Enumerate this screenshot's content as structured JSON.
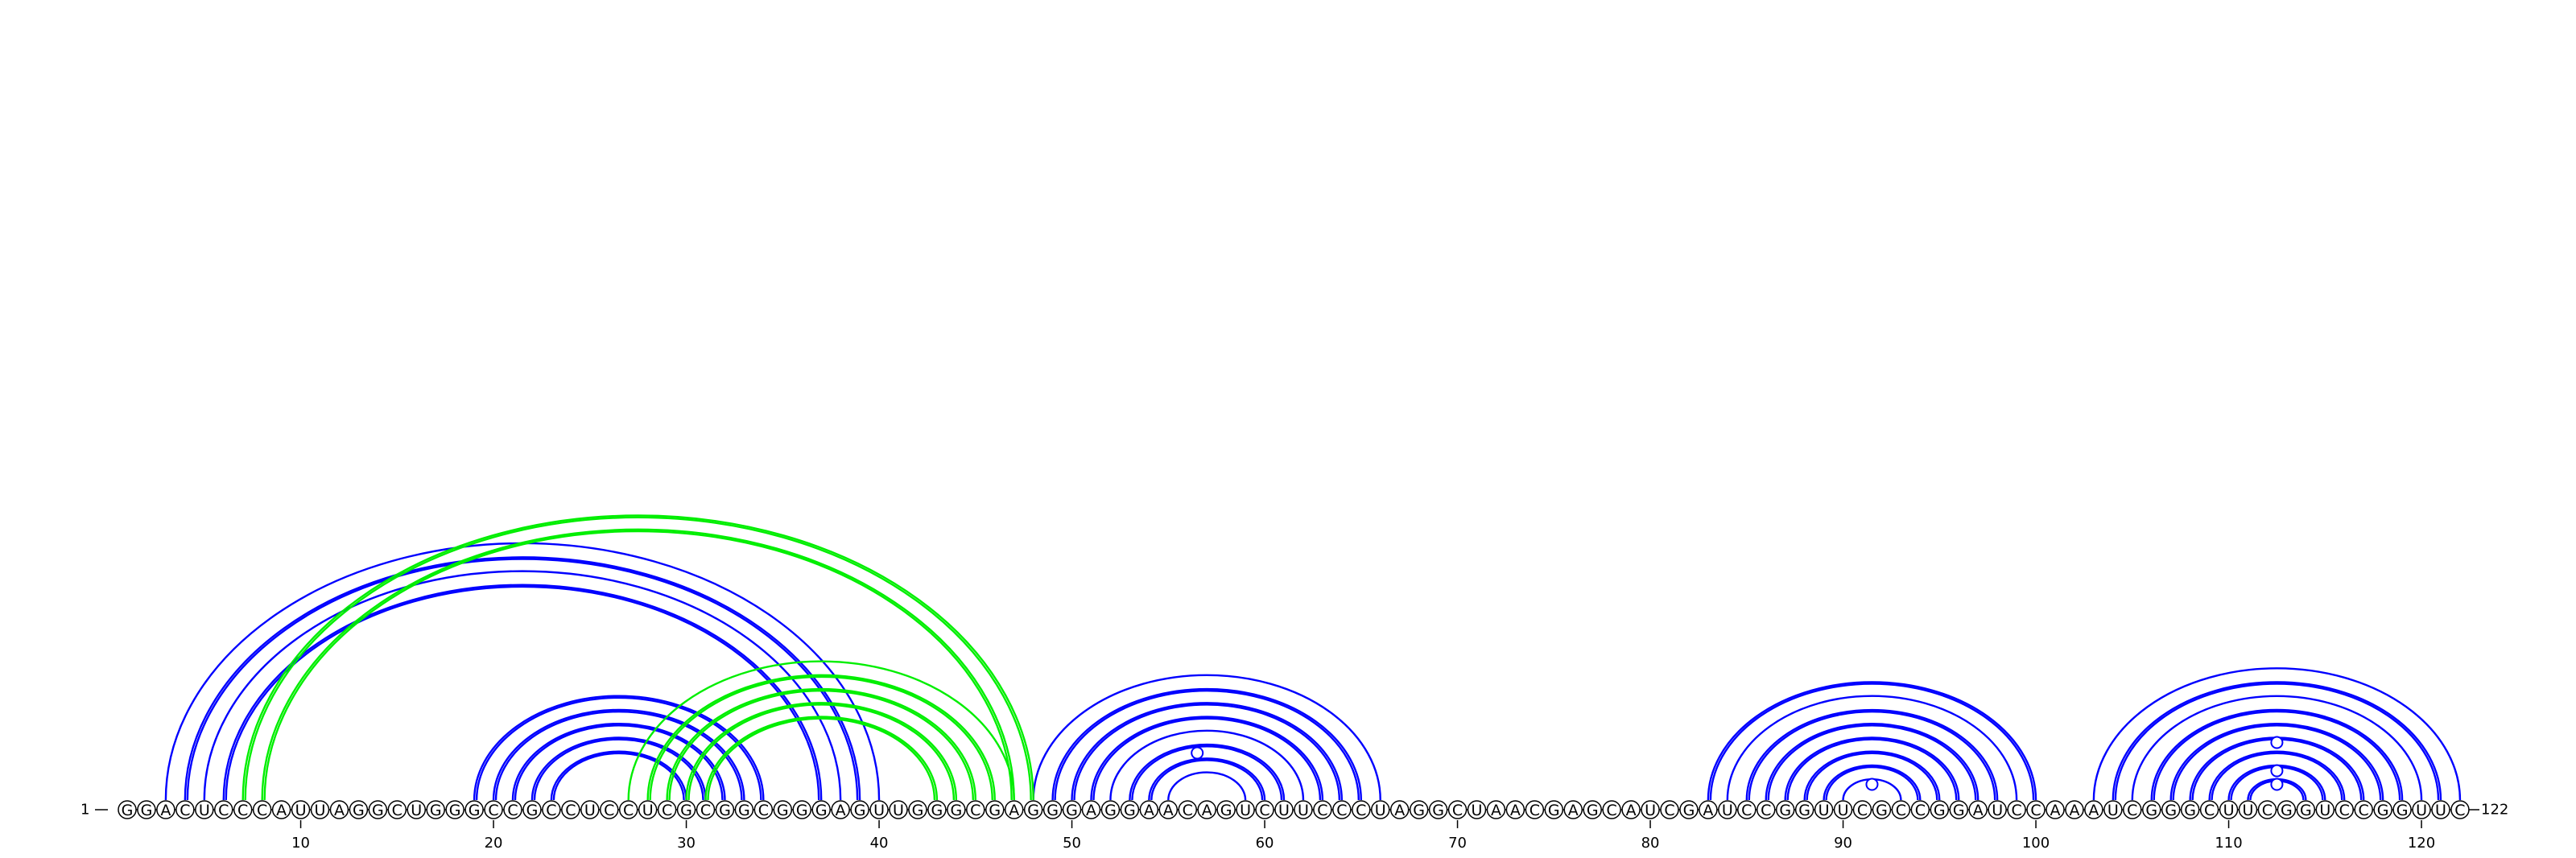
{
  "diagram": {
    "sequence": "GGACUCCCAUUAGGCUGGGCCGCCUCCUCGCGGCGGGAGUUGGGCGAGGGAGGAACAGUCUUCCCUAGGCUAACGAGCAUCGAUCCGGUUCGCCGGAUCCAAAUCGGGCUUCGGUCCGGUUC",
    "start_label": "1",
    "end_label": "122",
    "ticks": [
      10,
      20,
      30,
      40,
      50,
      60,
      70,
      80,
      90,
      100,
      110,
      120
    ],
    "colors": {
      "primary": "#0000ff",
      "secondary": "#00ee00",
      "nucleotide_outline": "#000000"
    },
    "arcs": [
      {
        "i": 3,
        "j": 40,
        "color": "#0000ff"
      },
      {
        "i": 4,
        "j": 39,
        "color": "#0000ff"
      },
      {
        "i": 4,
        "j": 39,
        "color": "#0000ff",
        "offset": 1
      },
      {
        "i": 5,
        "j": 38,
        "color": "#0000ff"
      },
      {
        "i": 6,
        "j": 37,
        "color": "#0000ff"
      },
      {
        "i": 6,
        "j": 37,
        "color": "#0000ff",
        "offset": 1
      },
      {
        "i": 19,
        "j": 34,
        "color": "#0000ff"
      },
      {
        "i": 19,
        "j": 34,
        "color": "#0000ff",
        "offset": 1
      },
      {
        "i": 20,
        "j": 33,
        "color": "#0000ff"
      },
      {
        "i": 20,
        "j": 33,
        "color": "#0000ff",
        "offset": 1
      },
      {
        "i": 21,
        "j": 32,
        "color": "#0000ff"
      },
      {
        "i": 21,
        "j": 32,
        "color": "#0000ff",
        "offset": 1
      },
      {
        "i": 22,
        "j": 31,
        "color": "#0000ff"
      },
      {
        "i": 22,
        "j": 31,
        "color": "#0000ff",
        "offset": 1
      },
      {
        "i": 23,
        "j": 30,
        "color": "#0000ff"
      },
      {
        "i": 23,
        "j": 30,
        "color": "#0000ff",
        "offset": 1
      },
      {
        "i": 48,
        "j": 66,
        "color": "#0000ff"
      },
      {
        "i": 49,
        "j": 65,
        "color": "#0000ff"
      },
      {
        "i": 49,
        "j": 65,
        "color": "#0000ff",
        "offset": 1
      },
      {
        "i": 50,
        "j": 64,
        "color": "#0000ff"
      },
      {
        "i": 50,
        "j": 64,
        "color": "#0000ff",
        "offset": 1
      },
      {
        "i": 51,
        "j": 63,
        "color": "#0000ff"
      },
      {
        "i": 51,
        "j": 63,
        "color": "#0000ff",
        "offset": 1
      },
      {
        "i": 52,
        "j": 62,
        "color": "#0000ff"
      },
      {
        "i": 53,
        "j": 61,
        "color": "#0000ff"
      },
      {
        "i": 53,
        "j": 61,
        "color": "#0000ff",
        "offset": 1
      },
      {
        "i": 54,
        "j": 60,
        "color": "#0000ff"
      },
      {
        "i": 54,
        "j": 60,
        "color": "#0000ff",
        "offset": 1
      },
      {
        "i": 55,
        "j": 59,
        "color": "#0000ff"
      },
      {
        "i": 83,
        "j": 100,
        "color": "#0000ff"
      },
      {
        "i": 83,
        "j": 100,
        "color": "#0000ff",
        "offset": 1
      },
      {
        "i": 84,
        "j": 99,
        "color": "#0000ff"
      },
      {
        "i": 85,
        "j": 98,
        "color": "#0000ff"
      },
      {
        "i": 85,
        "j": 98,
        "color": "#0000ff",
        "offset": 1
      },
      {
        "i": 86,
        "j": 97,
        "color": "#0000ff"
      },
      {
        "i": 86,
        "j": 97,
        "color": "#0000ff",
        "offset": 1
      },
      {
        "i": 87,
        "j": 96,
        "color": "#0000ff"
      },
      {
        "i": 87,
        "j": 96,
        "color": "#0000ff",
        "offset": 1
      },
      {
        "i": 88,
        "j": 95,
        "color": "#0000ff"
      },
      {
        "i": 88,
        "j": 95,
        "color": "#0000ff",
        "offset": 1
      },
      {
        "i": 89,
        "j": 94,
        "color": "#0000ff"
      },
      {
        "i": 89,
        "j": 94,
        "color": "#0000ff",
        "offset": 1
      },
      {
        "i": 90,
        "j": 93,
        "color": "#0000ff"
      },
      {
        "i": 103,
        "j": 122,
        "color": "#0000ff"
      },
      {
        "i": 104,
        "j": 121,
        "color": "#0000ff"
      },
      {
        "i": 104,
        "j": 121,
        "color": "#0000ff",
        "offset": 1
      },
      {
        "i": 105,
        "j": 120,
        "color": "#0000ff"
      },
      {
        "i": 106,
        "j": 119,
        "color": "#0000ff"
      },
      {
        "i": 106,
        "j": 119,
        "color": "#0000ff",
        "offset": 1
      },
      {
        "i": 107,
        "j": 118,
        "color": "#0000ff"
      },
      {
        "i": 107,
        "j": 118,
        "color": "#0000ff",
        "offset": 1
      },
      {
        "i": 108,
        "j": 117,
        "color": "#0000ff"
      },
      {
        "i": 108,
        "j": 117,
        "color": "#0000ff",
        "offset": 1
      },
      {
        "i": 109,
        "j": 116,
        "color": "#0000ff"
      },
      {
        "i": 109,
        "j": 116,
        "color": "#0000ff",
        "offset": 1
      },
      {
        "i": 110,
        "j": 115,
        "color": "#0000ff"
      },
      {
        "i": 110,
        "j": 115,
        "color": "#0000ff",
        "offset": 1
      },
      {
        "i": 111,
        "j": 114,
        "color": "#0000ff"
      },
      {
        "i": 111,
        "j": 114,
        "color": "#0000ff",
        "offset": 1
      },
      {
        "i": 7,
        "j": 48,
        "color": "#00ee00"
      },
      {
        "i": 7,
        "j": 48,
        "color": "#00ee00",
        "offset": 1
      },
      {
        "i": 8,
        "j": 47,
        "color": "#00ee00"
      },
      {
        "i": 8,
        "j": 47,
        "color": "#00ee00",
        "offset": 1
      },
      {
        "i": 27,
        "j": 47,
        "color": "#00ee00"
      },
      {
        "i": 28,
        "j": 46,
        "color": "#00ee00"
      },
      {
        "i": 28,
        "j": 46,
        "color": "#00ee00",
        "offset": 1
      },
      {
        "i": 29,
        "j": 45,
        "color": "#00ee00"
      },
      {
        "i": 29,
        "j": 45,
        "color": "#00ee00",
        "offset": 1
      },
      {
        "i": 30,
        "j": 44,
        "color": "#00ee00"
      },
      {
        "i": 30,
        "j": 44,
        "color": "#00ee00",
        "offset": 1
      },
      {
        "i": 31,
        "j": 43,
        "color": "#00ee00"
      },
      {
        "i": 31,
        "j": 43,
        "color": "#00ee00",
        "offset": 1
      }
    ],
    "markers": [
      {
        "pos": 56.5,
        "level": 4.5,
        "color": "#0000ff"
      },
      {
        "pos": 91.5,
        "level": 1.5,
        "color": "#0000ff"
      },
      {
        "pos": 112.5,
        "level": 1.5,
        "color": "#0000ff"
      },
      {
        "pos": 112.5,
        "level": 2.8,
        "color": "#0000ff"
      },
      {
        "pos": 112.5,
        "level": 5.5,
        "color": "#0000ff"
      }
    ]
  }
}
